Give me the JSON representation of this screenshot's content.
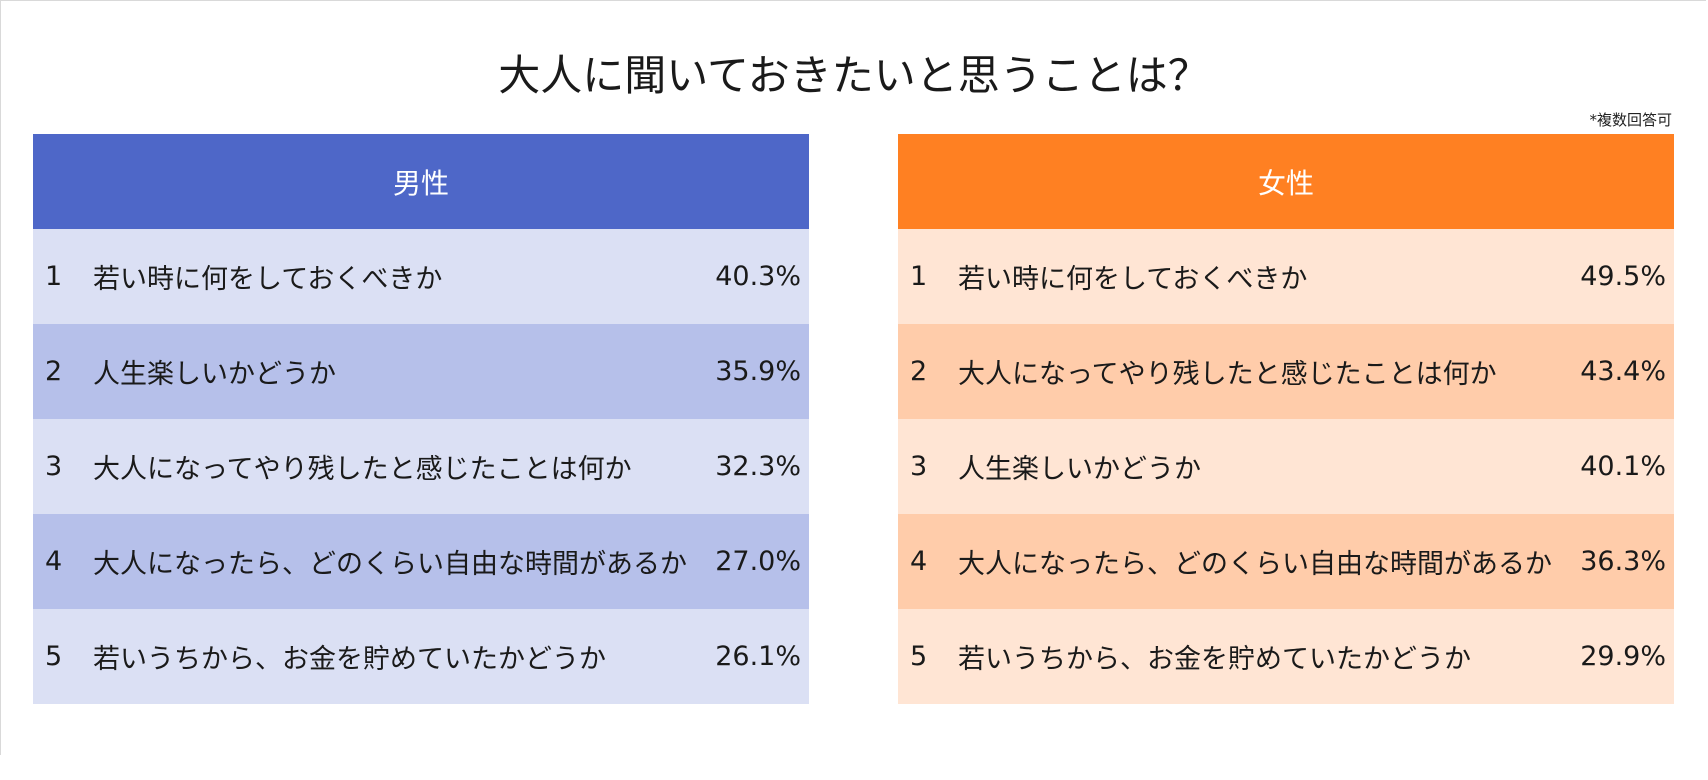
{
  "title": "大人に聞いておきたいと思うことは？",
  "note": "*複数回答可",
  "colors": {
    "male_header": "#4e67c8",
    "male_row_odd": "#dbe0f4",
    "male_row_even": "#b6c0ea",
    "female_header": "#ff8022",
    "female_row_odd": "#ffe5d4",
    "female_row_even": "#ffccaa"
  },
  "chart_data": [
    {
      "type": "table",
      "title": "男性",
      "ranks": [
        "1",
        "2",
        "3",
        "4",
        "5"
      ],
      "categories": [
        "若い時に何をしておくべきか",
        "人生楽しいかどうか",
        "大人になってやり残したと感じたことは何か",
        "大人になったら、どのくらい自由な時間があるか",
        "若いうちから、お金を貯めていたかどうか"
      ],
      "values": [
        "40.3%",
        "35.9%",
        "32.3%",
        "27.0%",
        "26.1%"
      ]
    },
    {
      "type": "table",
      "title": "女性",
      "ranks": [
        "1",
        "2",
        "3",
        "4",
        "5"
      ],
      "categories": [
        "若い時に何をしておくべきか",
        "大人になってやり残したと感じたことは何か",
        "人生楽しいかどうか",
        "大人になったら、どのくらい自由な時間があるか",
        "若いうちから、お金を貯めていたかどうか"
      ],
      "values": [
        "49.5%",
        "43.4%",
        "40.1%",
        "36.3%",
        "29.9%"
      ]
    }
  ]
}
